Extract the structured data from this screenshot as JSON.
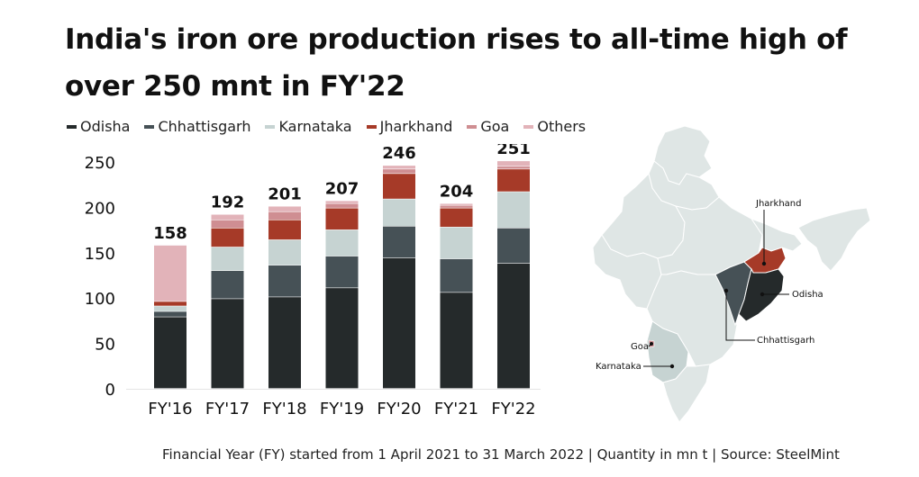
{
  "title": "India's iron ore production rises to all-time high of over 250 mnt in FY'22",
  "footnote": "Financial Year (FY) started from 1 April 2021 to 31 March 2022 | Quantity in mn t | Source: SteelMint",
  "colors": {
    "Odisha": "#252a2b",
    "Chhattisgarh": "#465156",
    "Karnataka": "#c6d3d2",
    "Jharkhand": "#a63a28",
    "Goa": "#cf8e92",
    "Others": "#e2b3b9",
    "map_base": "#dfe6e5",
    "map_border": "#ffffff"
  },
  "chart_data": {
    "type": "bar",
    "stacked": true,
    "categories": [
      "FY'16",
      "FY'17",
      "FY'18",
      "FY'19",
      "FY'20",
      "FY'21",
      "FY'22"
    ],
    "series": [
      {
        "name": "Odisha",
        "values": [
          79,
          99,
          101,
          111,
          144,
          106,
          138
        ]
      },
      {
        "name": "Chhattisgarh",
        "values": [
          6,
          31,
          35,
          35,
          35,
          37,
          39
        ]
      },
      {
        "name": "Karnataka",
        "values": [
          6,
          26,
          28,
          29,
          30,
          35,
          40
        ]
      },
      {
        "name": "Jharkhand",
        "values": [
          5,
          21,
          22,
          24,
          28,
          21,
          25
        ]
      },
      {
        "name": "Goa",
        "values": [
          0,
          9,
          9,
          5,
          5,
          3,
          3
        ]
      },
      {
        "name": "Others",
        "values": [
          62,
          6,
          6,
          3,
          4,
          2,
          6
        ]
      }
    ],
    "totals": [
      "158",
      "192",
      "201",
      "207",
      "246",
      "204",
      "251"
    ],
    "yticks": [
      0,
      50,
      100,
      150,
      200,
      250
    ],
    "ylim": [
      0,
      260
    ],
    "grid": false,
    "legend_position": "top"
  },
  "map": {
    "labels": {
      "jharkhand": "Jharkhand",
      "odisha": "Odisha",
      "chhattisgarh": "Chhattisgarh",
      "goa": "Goa",
      "karnataka": "Karnataka"
    }
  }
}
